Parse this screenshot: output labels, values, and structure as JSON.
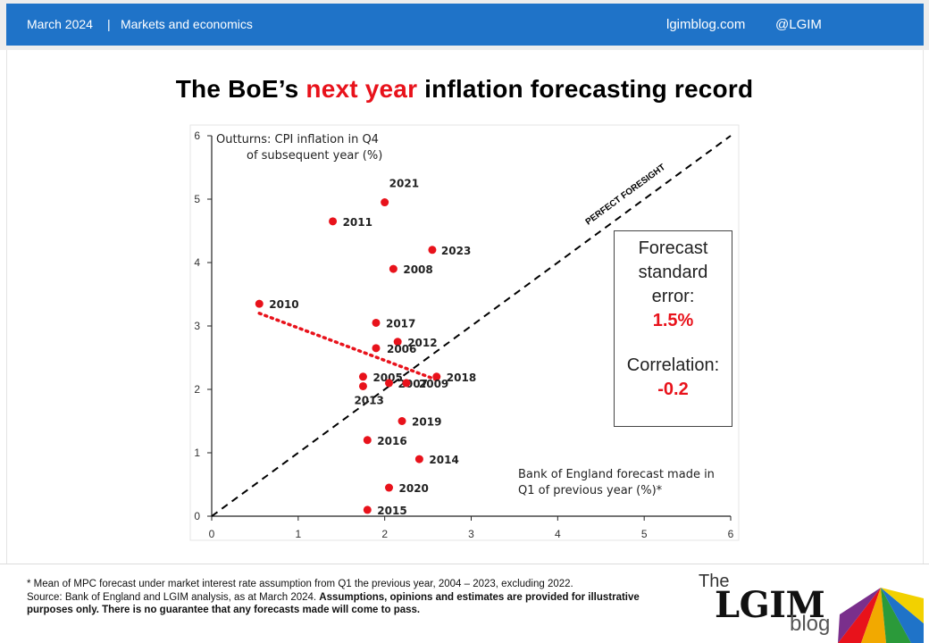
{
  "header": {
    "date": "March 2024",
    "separator": "|",
    "category": "Markets and economics",
    "site": "lgimblog.com",
    "handle": "@LGIM"
  },
  "title": {
    "part1": "The BoE’s ",
    "highlight": "next year",
    "part2": " inflation forecasting record"
  },
  "chart_data": {
    "type": "scatter",
    "title": "The BoE’s next year inflation forecasting record",
    "xlabel": "Bank of England forecast made in Q1 of previous year (%)*",
    "xlabel_lines": [
      "Bank of England forecast made in",
      "Q1 of previous year (%)*"
    ],
    "ylabel": "Outturns: CPI inflation in Q4 of subsequent year (%)",
    "ylabel_lines": [
      "Outturns: CPI inflation in Q4",
      "of subsequent year (%)"
    ],
    "xlim": [
      0,
      6
    ],
    "ylim": [
      0,
      6
    ],
    "xticks": [
      0,
      1,
      2,
      3,
      4,
      5,
      6
    ],
    "yticks": [
      0,
      1,
      2,
      3,
      4,
      5,
      6
    ],
    "grid": false,
    "marker_color": "#e8121b",
    "points": [
      {
        "label": "2021",
        "x": 2.0,
        "y": 4.95
      },
      {
        "label": "2011",
        "x": 1.4,
        "y": 4.65
      },
      {
        "label": "2023",
        "x": 2.55,
        "y": 4.2
      },
      {
        "label": "2008",
        "x": 2.1,
        "y": 3.9
      },
      {
        "label": "2010",
        "x": 0.55,
        "y": 3.35
      },
      {
        "label": "2017",
        "x": 1.9,
        "y": 3.05
      },
      {
        "label": "2012",
        "x": 2.15,
        "y": 2.75
      },
      {
        "label": "2006",
        "x": 1.9,
        "y": 2.65
      },
      {
        "label": "2005",
        "x": 1.75,
        "y": 2.2
      },
      {
        "label": "2018",
        "x": 2.6,
        "y": 2.2
      },
      {
        "label": "2007",
        "x": 2.05,
        "y": 2.1
      },
      {
        "label": "2009",
        "x": 2.25,
        "y": 2.1
      },
      {
        "label": "2013",
        "x": 1.75,
        "y": 2.05
      },
      {
        "label": "2019",
        "x": 2.2,
        "y": 1.5
      },
      {
        "label": "2016",
        "x": 1.8,
        "y": 1.2
      },
      {
        "label": "2014",
        "x": 2.4,
        "y": 0.9
      },
      {
        "label": "2020",
        "x": 2.05,
        "y": 0.45
      },
      {
        "label": "2015",
        "x": 1.8,
        "y": 0.1
      }
    ],
    "reference_line": {
      "label": "PERFECT FORESIGHT",
      "from": [
        0,
        0
      ],
      "to": [
        6,
        6
      ]
    },
    "trend_line": {
      "from": [
        0.55,
        3.2
      ],
      "to": [
        2.6,
        2.15
      ],
      "color": "#e8121b"
    }
  },
  "stats_box": {
    "line1": "Forecast",
    "line2": "standard",
    "line3": "error:",
    "value1": "1.5%",
    "line4": "Correlation:",
    "value2": "-0.2"
  },
  "footnotes": {
    "note1": "* Mean of MPC forecast under market interest rate assumption from Q1 the previous year, 2004 – 2023, excluding 2022.",
    "source": "Source: Bank of England and LGIM analysis, as at March 2024. ",
    "disclaimer1": "Assumptions, opinions and estimates are provided for illustrative",
    "disclaimer2": "purposes only.  There is no guarantee that any forecasts made will come to pass."
  },
  "logo": {
    "the": "The",
    "brand": "LGIM",
    "blog": "blog"
  }
}
